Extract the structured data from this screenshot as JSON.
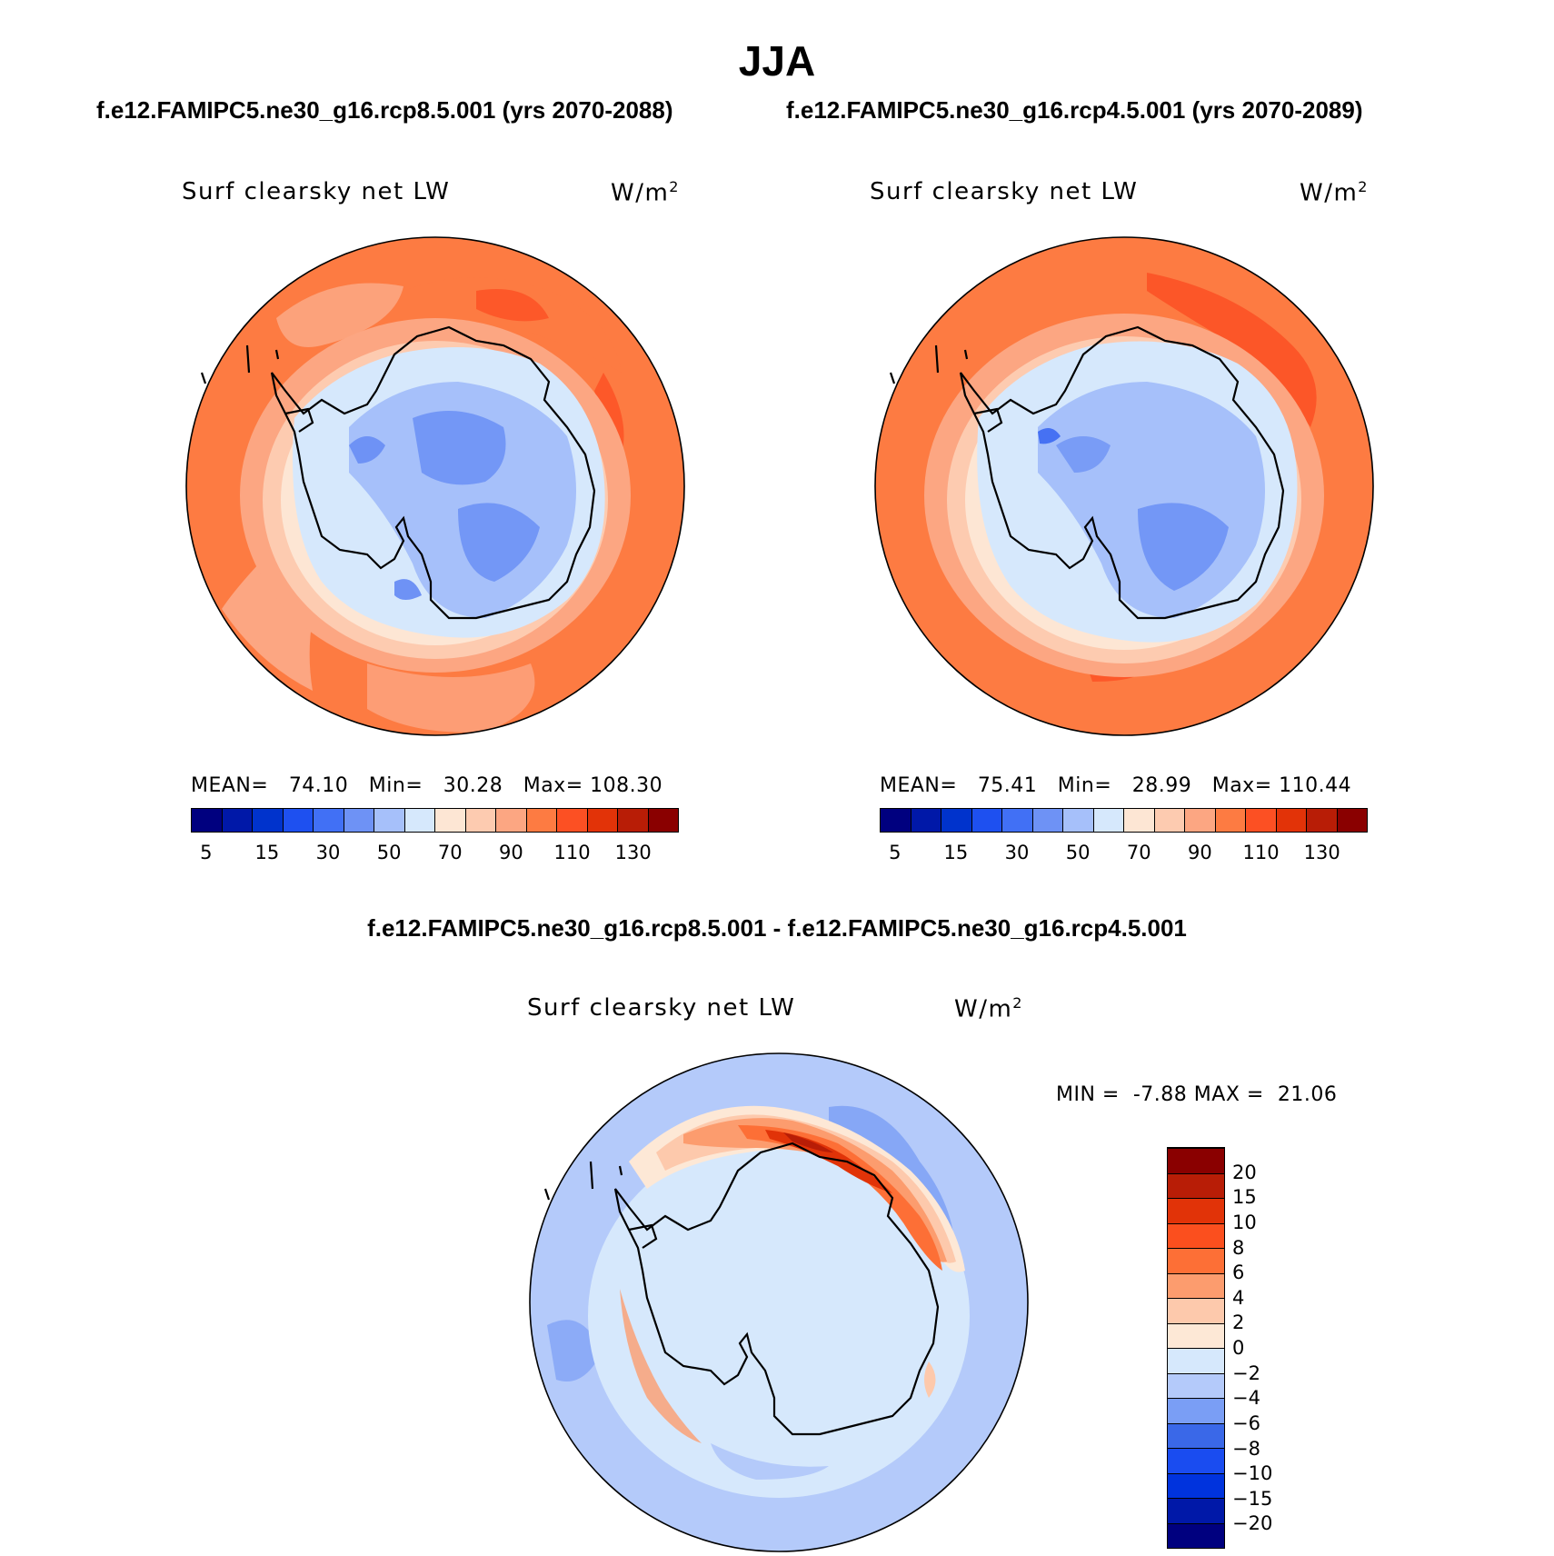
{
  "season": "JJA",
  "panels": [
    {
      "case": "f.e12.FAMIPC5.ne30_g16.rcp8.5.001 (yrs 2070-2088)",
      "variable": "Surf clearsky net LW",
      "units": "W/m",
      "units_exp": "2",
      "mean_label": "MEAN=",
      "mean": "74.10",
      "min_label": "Min=",
      "min": "30.28",
      "max_label": "Max=",
      "max": "108.30"
    },
    {
      "case": "f.e12.FAMIPC5.ne30_g16.rcp4.5.001 (yrs 2070-2089)",
      "variable": "Surf clearsky net LW",
      "units": "W/m",
      "units_exp": "2",
      "mean_label": "MEAN=",
      "mean": "75.41",
      "min_label": "Min=",
      "min": "28.99",
      "max_label": "Max=",
      "max": "110.44"
    }
  ],
  "diff_panel": {
    "title": "f.e12.FAMIPC5.ne30_g16.rcp8.5.001 - f.e12.FAMIPC5.ne30_g16.rcp4.5.001",
    "variable": "Surf clearsky net LW",
    "units": "W/m",
    "units_exp": "2",
    "min_label": "MIN =",
    "min": "-7.88",
    "max_label": "MAX =",
    "max": "21.06"
  },
  "field_colorbar": {
    "colors": [
      "#00007f",
      "#0018a8",
      "#0033cc",
      "#1e50f0",
      "#4170f5",
      "#6e92f5",
      "#a6c0fa",
      "#d6e8fc",
      "#fde6d4",
      "#fdcbb0",
      "#fca682",
      "#fd7b42",
      "#fc5023",
      "#e23308",
      "#b81d06",
      "#8a0000"
    ],
    "tick_labels": [
      "5",
      "15",
      "30",
      "50",
      "70",
      "90",
      "110",
      "130"
    ]
  },
  "diff_colorbar": {
    "colors": [
      "#00007f",
      "#0018a8",
      "#0033dd",
      "#1a4cf0",
      "#3a68e8",
      "#7a9ef5",
      "#b4cafa",
      "#d6e8fc",
      "#fde8d6",
      "#fdc9ac",
      "#fc9c6e",
      "#fd6f36",
      "#fb4f1e",
      "#e13308",
      "#b81d06",
      "#8a0000"
    ],
    "tick_labels": [
      "-20",
      "-15",
      "-10",
      "-8",
      "-6",
      "-4",
      "-2",
      "0",
      "2",
      "4",
      "6",
      "8",
      "10",
      "15",
      "20"
    ]
  },
  "chart_data": [
    {
      "type": "heatmap",
      "projection": "south polar stereographic",
      "title": "Surf clearsky net LW",
      "units": "W/m2",
      "levels": [
        5,
        10,
        15,
        20,
        30,
        40,
        50,
        60,
        70,
        80,
        90,
        100,
        110,
        120,
        130
      ],
      "stats": {
        "mean": 74.1,
        "min": 30.28,
        "max": 108.3
      }
    },
    {
      "type": "heatmap",
      "projection": "south polar stereographic",
      "title": "Surf clearsky net LW",
      "units": "W/m2",
      "levels": [
        5,
        10,
        15,
        20,
        30,
        40,
        50,
        60,
        70,
        80,
        90,
        100,
        110,
        120,
        130
      ],
      "stats": {
        "mean": 75.41,
        "min": 28.99,
        "max": 110.44
      }
    },
    {
      "type": "heatmap",
      "projection": "south polar stereographic",
      "title": "Surf clearsky net LW",
      "units": "W/m2",
      "levels": [
        -20,
        -15,
        -10,
        -8,
        -6,
        -4,
        -2,
        0,
        2,
        4,
        6,
        8,
        10,
        15,
        20
      ],
      "stats": {
        "min": -7.88,
        "max": 21.06
      }
    }
  ]
}
